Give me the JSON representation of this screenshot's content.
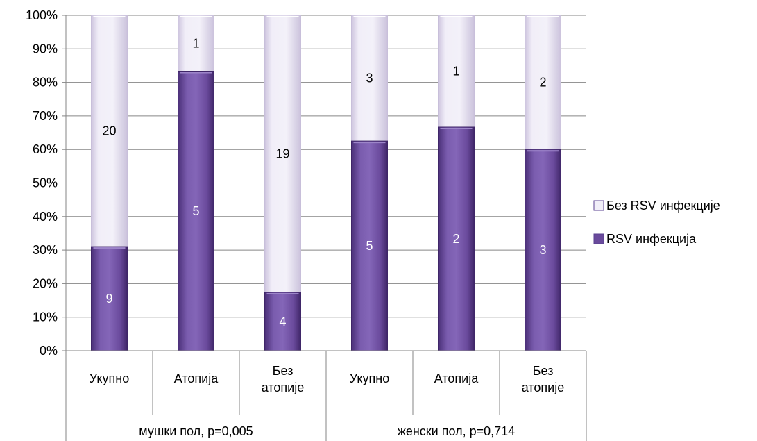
{
  "chart_data": {
    "type": "bar",
    "stacked": "percent",
    "categories": [
      [
        "Укупно"
      ],
      [
        "Атопија"
      ],
      [
        "Без",
        "атопије"
      ],
      [
        "Укупно"
      ],
      [
        "Атопија"
      ],
      [
        "Без",
        "атопије"
      ]
    ],
    "groups": [
      {
        "label": "мушки пол, p=0,005",
        "span": 3
      },
      {
        "label": "женски пол, p=0,714",
        "span": 3
      }
    ],
    "series": [
      {
        "name": "RSV инфекција",
        "values": [
          9,
          5,
          4,
          5,
          2,
          3
        ],
        "color": "#6a4a9c"
      },
      {
        "name": "Без RSV инфекције",
        "values": [
          20,
          1,
          19,
          3,
          1,
          2
        ],
        "color": "#f1eef8"
      }
    ],
    "legend_order": [
      "Без RSV инфекције",
      "RSV инфекција"
    ],
    "legend_position": "right",
    "y_ticks": [
      "0%",
      "10%",
      "20%",
      "30%",
      "40%",
      "50%",
      "60%",
      "70%",
      "80%",
      "90%",
      "100%"
    ],
    "ylim": [
      0,
      100
    ],
    "grid": true
  }
}
